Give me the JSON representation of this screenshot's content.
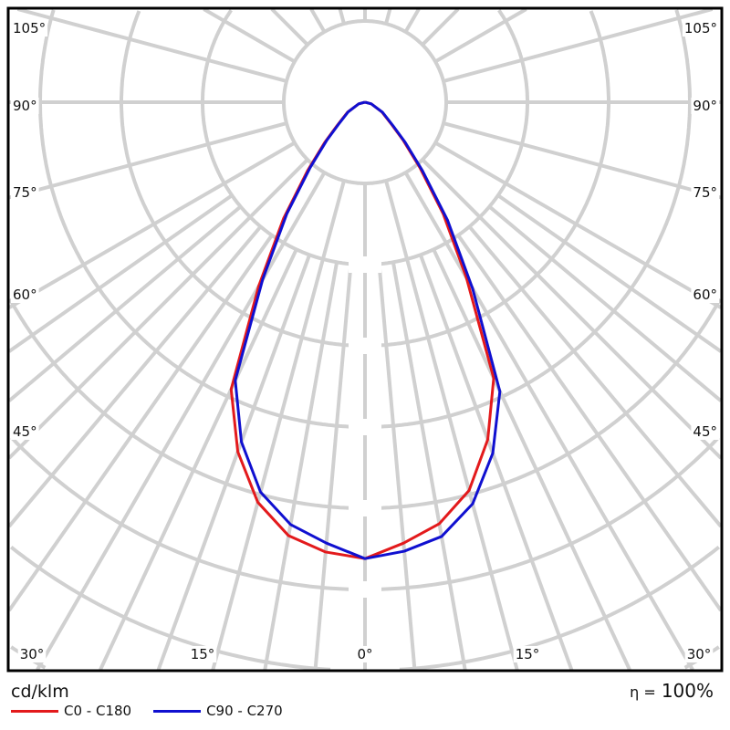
{
  "chart_data": {
    "type": "polar",
    "unit_label": "cd/klm",
    "efficiency_symbol": "η =",
    "efficiency": "100%",
    "angle_labels_left": [
      "105°",
      "90°",
      "75°",
      "60°",
      "45°",
      "30°",
      "15°"
    ],
    "angle_labels_bottom": [
      "30°",
      "15°",
      "0°",
      "15°",
      "30°"
    ],
    "angle_labels_right": [
      "105°",
      "90°",
      "75°",
      "60°",
      "45°"
    ],
    "grid": true,
    "radial_tick_labels_visible": false,
    "angles": [
      0,
      5,
      10,
      15,
      20,
      25,
      30,
      35,
      40,
      45,
      50,
      60,
      75,
      90
    ],
    "series": [
      {
        "name": "C0 - C180",
        "color": "#e31a1c",
        "left": [
          5.62,
          5.56,
          5.42,
          5.1,
          4.58,
          3.9,
          2.62,
          1.75,
          1.1,
          0.7,
          0.45,
          0.25,
          0.08,
          0
        ],
        "right": [
          5.62,
          5.45,
          5.27,
          4.95,
          4.42,
          3.75,
          2.5,
          1.68,
          1.05,
          0.67,
          0.43,
          0.24,
          0.08,
          0
        ]
      },
      {
        "name": "C90 - C270",
        "color": "#1010d0",
        "left": [
          5.62,
          5.45,
          5.28,
          4.97,
          4.45,
          3.78,
          2.52,
          1.68,
          1.05,
          0.67,
          0.43,
          0.24,
          0.08,
          0
        ],
        "right": [
          5.62,
          5.55,
          5.43,
          5.12,
          4.6,
          3.93,
          2.65,
          1.77,
          1.1,
          0.7,
          0.45,
          0.25,
          0.08,
          0
        ]
      }
    ]
  }
}
